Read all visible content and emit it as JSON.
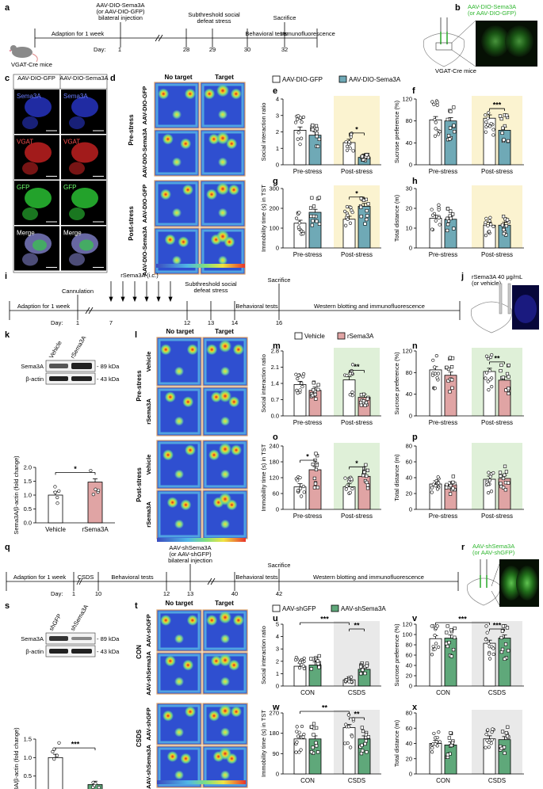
{
  "row1": {
    "panel_a": {
      "letter": "a",
      "label_above_3": "AAV-DIO-Sema3A",
      "label_above_4": "(or AAV-DIO-GFP)",
      "label_above_5": "bilateral injection",
      "label_above_6": "Subthreshold social",
      "label_above_7": "defeat stress",
      "label_above_8": "Sacrifice",
      "seg_1": "Adaption for 1 week",
      "seg_2": "Behavioral tests",
      "seg_3": "Immunofluorescence",
      "day_prefix": "Day:",
      "days": [
        "1",
        "28",
        "29",
        "30",
        "32"
      ],
      "mouse_label": "VGAT-Cre mice"
    },
    "panel_b": {
      "letter": "b",
      "label_line1": "AAV-DIO-Sema3A",
      "label_line2": "(or AAV-DIO-GFP)",
      "sublabel": "VGAT-Cre mice"
    },
    "panel_c": {
      "letter": "c",
      "col_headers": [
        "AAV-DIO-GFP",
        "AAV-DIO-Sema3A"
      ],
      "row_labels": [
        "Sema3A",
        "VGAT",
        "GFP",
        "Merge"
      ]
    },
    "panel_d": {
      "letter": "d",
      "col_headers": [
        "No target",
        "Target"
      ],
      "group_labels": [
        "Pre-stress",
        "Post-stress"
      ],
      "row_labels": [
        "AAV-DIO-GFP",
        "AAV-DIO-Sema3A",
        "AAV-DIO-GFP",
        "AAV-DIO-Sema3A"
      ]
    },
    "legend": {
      "items": [
        "AAV-DIO-GFP",
        "AAV-DIO-Sema3A"
      ],
      "colors": [
        "#ffffff",
        "#6fa9b6"
      ]
    }
  },
  "row2": {
    "panel_i": {
      "letter": "i",
      "seg_1": "Adaption for 1 week",
      "cannulation": "Cannulation",
      "rsema": "rSema3A (i.c.)",
      "stress_1": "Subthreshold social",
      "stress_2": "defeat stress",
      "sacrifice": "Sacrifice",
      "seg_2": "Behavioral tests",
      "seg_3": "Western blotting and immunofluorescence",
      "day_prefix": "Day:",
      "days": [
        "1",
        "7",
        "12",
        "13",
        "14",
        "16"
      ]
    },
    "panel_j": {
      "letter": "j",
      "label_line1": "rSema3A 40 μg/mL",
      "label_line2": "(or vehicle)"
    },
    "panel_k": {
      "letter": "k",
      "lane_labels": [
        "Vehicle",
        "rSema3A"
      ],
      "bands": [
        "Sema3A",
        "β-actin"
      ],
      "sizes": [
        "- 89 kDa",
        "- 43 kDa"
      ],
      "sig": "*"
    },
    "panel_l": {
      "letter": "l",
      "col_headers": [
        "No target",
        "Target"
      ],
      "group_labels": [
        "Pre-stress",
        "Post-stress"
      ],
      "row_labels": [
        "Vehicle",
        "rSema3A",
        "Vehicle",
        "rSema3A"
      ]
    },
    "legend": {
      "items": [
        "Vehicle",
        "rSema3A"
      ],
      "colors": [
        "#ffffff",
        "#e0a4a4"
      ]
    }
  },
  "row3": {
    "panel_q": {
      "letter": "q",
      "seg_1": "Adaption for 1 week",
      "csds": "CSDS",
      "seg_2": "Behavioral tests",
      "inj_1": "AAV-shSema3A",
      "inj_2": "(or AAV-shGFP)",
      "inj_3": "bilateral injection",
      "seg_3": "Behavioral tests",
      "sacrifice": "Sacrifice",
      "seg_4": "Western blotting and immunofluorescence",
      "day_prefix": "Day:",
      "days": [
        "1",
        "10",
        "12",
        "13",
        "40",
        "42"
      ]
    },
    "panel_r": {
      "letter": "r",
      "label_line1": "AAV-shSema3A",
      "label_line2": "(or AAV-shGFP)"
    },
    "panel_s": {
      "letter": "s",
      "lane_labels": [
        "shGFP",
        "shSema3A"
      ],
      "bands": [
        "Sema3A",
        "β-actin"
      ],
      "sizes": [
        "- 89 kDa",
        "- 43 kDa"
      ],
      "sig": "***"
    },
    "panel_t": {
      "letter": "t",
      "col_headers": [
        "No target",
        "Target"
      ],
      "group_labels": [
        "CON",
        "CSDS"
      ],
      "row_labels": [
        "AAV-shGFP",
        "AAV-shSema3A",
        "AAV-shGFP",
        "AAV-shSema3A"
      ]
    },
    "legend": {
      "items": [
        "AAV-shGFP",
        "AAV-shSema3A"
      ],
      "colors": [
        "#ffffff",
        "#5fa87a"
      ]
    }
  },
  "chart_data": [
    {
      "panel": "e",
      "type": "bar",
      "ylabel": "Social interaction ratio",
      "ylim": [
        0,
        4
      ],
      "yticks": [
        "0",
        "1",
        "2",
        "3",
        "4"
      ],
      "categories": [
        "Pre-stress",
        "Post-stress"
      ],
      "highlight": "Post-stress",
      "highlight_color": "#fbf3d0",
      "series": [
        {
          "name": "AAV-DIO-GFP",
          "values": [
            2.1,
            1.35
          ]
        },
        {
          "name": "AAV-DIO-Sema3A",
          "values": [
            1.8,
            0.45
          ]
        }
      ],
      "sig": [
        {
          "group": "Post-stress",
          "text": "*"
        }
      ]
    },
    {
      "panel": "f",
      "type": "bar",
      "ylabel": "Sucrose preference (%)",
      "ylim": [
        0,
        120
      ],
      "yticks": [
        "0",
        "40",
        "80",
        "120"
      ],
      "categories": [
        "Pre-stress",
        "Post-stress"
      ],
      "highlight": "Post-stress",
      "highlight_color": "#fbf3d0",
      "series": [
        {
          "name": "AAV-DIO-GFP",
          "values": [
            82,
            85
          ]
        },
        {
          "name": "AAV-DIO-Sema3A",
          "values": [
            80,
            63
          ]
        }
      ],
      "sig": [
        {
          "group": "Post-stress",
          "text": "***"
        }
      ]
    },
    {
      "panel": "g",
      "type": "bar",
      "ylabel": "Immobility time (s) in TST",
      "ylim": [
        0,
        300
      ],
      "yticks": [
        "0",
        "100",
        "200",
        "300"
      ],
      "categories": [
        "Pre-stress",
        "Post-stress"
      ],
      "highlight": "Post-stress",
      "highlight_color": "#fbf3d0",
      "series": [
        {
          "name": "AAV-DIO-GFP",
          "values": [
            125,
            145
          ]
        },
        {
          "name": "AAV-DIO-Sema3A",
          "values": [
            180,
            210
          ]
        }
      ],
      "sig": [
        {
          "group": "Post-stress",
          "text": "*"
        }
      ]
    },
    {
      "panel": "h",
      "type": "bar",
      "ylabel": "Total distance (m)",
      "ylim": [
        0,
        30
      ],
      "yticks": [
        "0",
        "10",
        "20",
        "30"
      ],
      "categories": [
        "Pre-stress",
        "Post-stress"
      ],
      "highlight": "Post-stress",
      "highlight_color": "#fbf3d0",
      "series": [
        {
          "name": "AAV-DIO-GFP",
          "values": [
            15,
            11.5
          ]
        },
        {
          "name": "AAV-DIO-Sema3A",
          "values": [
            14.5,
            11.5
          ]
        }
      ],
      "sig": []
    },
    {
      "panel": "k",
      "type": "bar",
      "ylabel": "Sema3A/β-actin (fold change)",
      "ylim": [
        0,
        2.0
      ],
      "yticks": [
        "0.0",
        "0.5",
        "1.0",
        "1.5",
        "2.0"
      ],
      "categories": [
        "Vehicle",
        "rSema3A"
      ],
      "single": true,
      "series": [
        {
          "values": [
            1.0,
            1.47
          ]
        }
      ],
      "bar_colors": [
        "#ffffff",
        "#e0a4a4"
      ],
      "sig": [
        {
          "group": "all",
          "text": "*"
        }
      ]
    },
    {
      "panel": "m",
      "type": "bar",
      "ylabel": "Social interaction ratio",
      "ylim": [
        0,
        2.8
      ],
      "yticks": [
        "0.0",
        "0.7",
        "1.4",
        "2.1",
        "2.8"
      ],
      "categories": [
        "Pre-stress",
        "Post-stress"
      ],
      "highlight": "Post-stress",
      "highlight_color": "#dff0d8",
      "series": [
        {
          "name": "Vehicle",
          "values": [
            1.35,
            1.55
          ]
        },
        {
          "name": "rSema3A",
          "values": [
            1.1,
            0.8
          ]
        }
      ],
      "sig": [
        {
          "group": "Post-stress",
          "text": "**"
        }
      ]
    },
    {
      "panel": "n",
      "type": "bar",
      "ylabel": "Sucrose preference (%)",
      "ylim": [
        0,
        120
      ],
      "yticks": [
        "0",
        "40",
        "80",
        "120"
      ],
      "categories": [
        "Pre-stress",
        "Post-stress"
      ],
      "highlight": "Post-stress",
      "highlight_color": "#dff0d8",
      "series": [
        {
          "name": "Vehicle",
          "values": [
            85,
            82
          ]
        },
        {
          "name": "rSema3A",
          "values": [
            75,
            66
          ]
        }
      ],
      "sig": [
        {
          "group": "Post-stress",
          "text": "**"
        }
      ]
    },
    {
      "panel": "o",
      "type": "bar",
      "ylabel": "Immobility time (s) in TST",
      "ylim": [
        0,
        240
      ],
      "yticks": [
        "0",
        "60",
        "120",
        "180",
        "240"
      ],
      "categories": [
        "Pre-stress",
        "Post-stress"
      ],
      "highlight": "Post-stress",
      "highlight_color": "#dff0d8",
      "series": [
        {
          "name": "Vehicle",
          "values": [
            85,
            85
          ]
        },
        {
          "name": "rSema3A",
          "values": [
            150,
            125
          ]
        }
      ],
      "sig": [
        {
          "group": "Pre-stress",
          "text": "*"
        },
        {
          "group": "Post-stress",
          "text": "*"
        }
      ]
    },
    {
      "panel": "p",
      "type": "bar",
      "ylabel": "Total distance (m)",
      "ylim": [
        0,
        80
      ],
      "yticks": [
        "0",
        "20",
        "40",
        "60",
        "80"
      ],
      "categories": [
        "Pre-stress",
        "Post-stress"
      ],
      "highlight": "Post-stress",
      "highlight_color": "#dff0d8",
      "series": [
        {
          "name": "Vehicle",
          "values": [
            32,
            38
          ]
        },
        {
          "name": "rSema3A",
          "values": [
            31,
            39
          ]
        }
      ],
      "sig": []
    },
    {
      "panel": "s",
      "type": "bar",
      "ylabel": "Sema3A/β-actin (fold change)",
      "ylim": [
        0,
        1.5
      ],
      "yticks": [
        "0.0",
        "0.5",
        "1.0",
        "1.5"
      ],
      "categories": [
        "shGFP",
        "shSema3A"
      ],
      "single": true,
      "series": [
        {
          "values": [
            1.0,
            0.27
          ]
        }
      ],
      "bar_colors": [
        "#ffffff",
        "#5fa87a"
      ],
      "sig": [
        {
          "group": "all",
          "text": "***"
        }
      ]
    },
    {
      "panel": "u",
      "type": "bar",
      "ylabel": "Social interaction ratio",
      "ylim": [
        0,
        5
      ],
      "yticks": [
        "0",
        "1",
        "2",
        "3",
        "4",
        "5"
      ],
      "categories": [
        "CON",
        "CSDS"
      ],
      "highlight": "CSDS",
      "highlight_color": "#e9e9e9",
      "series": [
        {
          "name": "AAV-shGFP",
          "values": [
            1.6,
            0.5
          ]
        },
        {
          "name": "AAV-shSema3A",
          "values": [
            1.7,
            1.35
          ]
        }
      ],
      "sig": [
        {
          "span": "outer",
          "text": "***"
        },
        {
          "group": "CSDS",
          "text": "**"
        }
      ]
    },
    {
      "panel": "v",
      "type": "bar",
      "ylabel": "Sucrose preference (%)",
      "ylim": [
        0,
        120
      ],
      "yticks": [
        "0",
        "20",
        "40",
        "60",
        "80",
        "100",
        "120"
      ],
      "categories": [
        "CON",
        "CSDS"
      ],
      "highlight": "CSDS",
      "highlight_color": "#e9e9e9",
      "series": [
        {
          "name": "AAV-shGFP",
          "values": [
            92,
            83
          ]
        },
        {
          "name": "AAV-shSema3A",
          "values": [
            93,
            93
          ]
        }
      ],
      "sig": [
        {
          "span": "outer",
          "text": "***"
        },
        {
          "group": "CSDS",
          "text": "***"
        }
      ]
    },
    {
      "panel": "w",
      "type": "bar",
      "ylabel": "Immobility time (s) in TST",
      "ylim": [
        0,
        270
      ],
      "yticks": [
        "0",
        "90",
        "180",
        "270"
      ],
      "categories": [
        "CON",
        "CSDS"
      ],
      "highlight": "CSDS",
      "highlight_color": "#e9e9e9",
      "series": [
        {
          "name": "AAV-shGFP",
          "values": [
            155,
            205
          ]
        },
        {
          "name": "AAV-shSema3A",
          "values": [
            155,
            155
          ]
        }
      ],
      "sig": [
        {
          "span": "outer",
          "text": "**"
        },
        {
          "group": "CSDS",
          "text": "**"
        }
      ]
    },
    {
      "panel": "x",
      "type": "bar",
      "ylabel": "Total distance (m)",
      "ylim": [
        0,
        80
      ],
      "yticks": [
        "0",
        "20",
        "40",
        "60",
        "80"
      ],
      "categories": [
        "CON",
        "CSDS"
      ],
      "highlight": "CSDS",
      "highlight_color": "#e9e9e9",
      "series": [
        {
          "name": "AAV-shGFP",
          "values": [
            40,
            46
          ]
        },
        {
          "name": "AAV-shSema3A",
          "values": [
            38,
            45
          ]
        }
      ],
      "sig": []
    }
  ]
}
